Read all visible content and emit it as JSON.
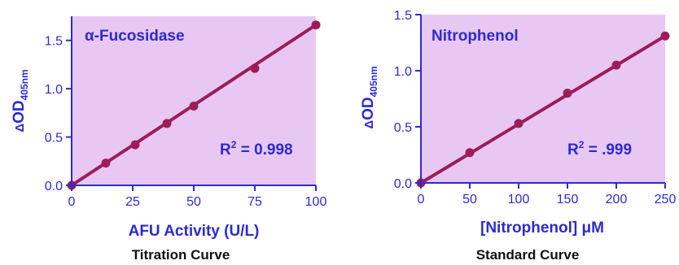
{
  "colors": {
    "plot_background": "#e9c7f3",
    "axis": "#2b2bd0",
    "series": "#9b1d5a",
    "caption": "#111111"
  },
  "chart_data": [
    {
      "type": "line",
      "title": "α-Fucosidase",
      "xlabel": "AFU Activity (U/L)",
      "ylabel": "ΔOD405nm",
      "ylabel_parts": {
        "delta": "Δ",
        "main": "OD",
        "sub": "405nm"
      },
      "caption": "Titration Curve",
      "annotation": {
        "text": "R",
        "sup": "2",
        "value": " = 0.998"
      },
      "xlim": [
        0,
        100
      ],
      "ylim": [
        0,
        1.75
      ],
      "xticks": [
        0,
        25,
        50,
        75,
        100
      ],
      "xtick_labels": [
        "0",
        "25",
        "50",
        "75",
        "100"
      ],
      "yticks": [
        0.0,
        0.5,
        1.0,
        1.5
      ],
      "ytick_labels": [
        "0.0",
        "0.5",
        "1.0",
        "1.5"
      ],
      "grid": false,
      "points": {
        "x": [
          0,
          14,
          26,
          39,
          50,
          75,
          100
        ],
        "y": [
          0.0,
          0.23,
          0.42,
          0.64,
          0.82,
          1.21,
          1.66
        ]
      },
      "fit": {
        "x": [
          0,
          100
        ],
        "y": [
          0.0,
          1.66
        ]
      }
    },
    {
      "type": "line",
      "title": "Nitrophenol",
      "xlabel": "[Nitrophenol] μM",
      "ylabel": "ΔOD405nm",
      "ylabel_parts": {
        "delta": "Δ",
        "main": "OD",
        "sub": "405nm"
      },
      "caption": "Standard Curve",
      "annotation": {
        "text": "R",
        "sup": "2",
        "value": " = .999"
      },
      "xlim": [
        0,
        250
      ],
      "ylim": [
        0,
        1.5
      ],
      "xticks": [
        0,
        50,
        100,
        150,
        200,
        250
      ],
      "xtick_labels": [
        "0",
        "50",
        "100",
        "150",
        "200",
        "250"
      ],
      "yticks": [
        0.0,
        0.5,
        1.0,
        1.5
      ],
      "ytick_labels": [
        "0.0",
        "0.5",
        "1.0",
        "1.5"
      ],
      "grid": false,
      "points": {
        "x": [
          0,
          50,
          100,
          150,
          200,
          250
        ],
        "y": [
          0.0,
          0.27,
          0.53,
          0.8,
          1.05,
          1.31
        ]
      },
      "fit": {
        "x": [
          0,
          250
        ],
        "y": [
          0.0,
          1.31
        ]
      }
    }
  ]
}
